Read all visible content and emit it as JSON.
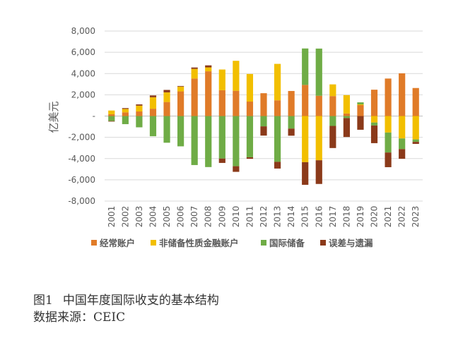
{
  "chart_data": {
    "type": "bar",
    "stacked": true,
    "ylabel": "亿美元",
    "ylim": [
      -8000,
      8000
    ],
    "yticks": [
      -8000,
      -6000,
      -4000,
      -2000,
      0,
      2000,
      4000,
      6000,
      8000
    ],
    "ytick_labels": [
      "-8,000",
      "-6,000",
      "-4,000",
      "-2,000",
      "-",
      "2,000",
      "4,000",
      "6,000",
      "8,000"
    ],
    "grid": true,
    "legend_position": "bottom",
    "categories": [
      "2001",
      "2002",
      "2003",
      "2004",
      "2005",
      "2006",
      "2007",
      "2008",
      "2009",
      "2010",
      "2011",
      "2012",
      "2013",
      "2014",
      "2015",
      "2016",
      "2017",
      "2018",
      "2019",
      "2020",
      "2021",
      "2022",
      "2023"
    ],
    "series": [
      {
        "name": "经常账户",
        "color": "#E07B28",
        "values": [
          170,
          350,
          430,
          690,
          1320,
          2320,
          3530,
          4210,
          2430,
          2380,
          1360,
          2150,
          1480,
          2360,
          2930,
          1910,
          1880,
          240,
          1030,
          2480,
          3530,
          4020,
          2640
        ]
      },
      {
        "name": "非储备性质金融账户",
        "color": "#F2BF00",
        "values": [
          350,
          320,
          550,
          1080,
          910,
          450,
          910,
          370,
          1950,
          2820,
          2600,
          0,
          3430,
          0,
          -4340,
          -4160,
          1100,
          1730,
          70,
          -610,
          -1550,
          -2110,
          -2200
        ]
      },
      {
        "name": "国际储备",
        "color": "#6FAC46",
        "values": [
          -470,
          -760,
          -1060,
          -1900,
          -2510,
          -2850,
          -4610,
          -4800,
          -4000,
          -4720,
          -3880,
          -970,
          -4310,
          -1180,
          3430,
          4440,
          -930,
          -190,
          190,
          -280,
          -1880,
          -1000,
          -230
        ]
      },
      {
        "name": "误差与遗漏",
        "color": "#8B3A1A",
        "values": [
          -50,
          80,
          120,
          170,
          230,
          60,
          130,
          190,
          -410,
          -530,
          -140,
          -870,
          -630,
          -670,
          -2130,
          -2230,
          -2080,
          -1780,
          -1290,
          -1660,
          -1380,
          -910,
          -190
        ]
      }
    ]
  },
  "caption": {
    "figure_number": "图1",
    "title": "中国年度国际收支的基本结构",
    "source": "数据来源：CEIC"
  }
}
